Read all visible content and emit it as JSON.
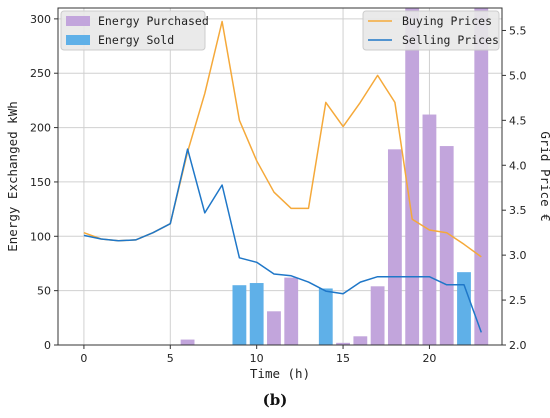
{
  "caption": "(b)",
  "chart_data": {
    "type": "bar",
    "xlabel": "Time (h)",
    "ylabel": "Energy Exchanged kWh",
    "y2label": "Grid Price €",
    "xlim": [
      -1.5,
      24.2
    ],
    "ylim": [
      0,
      310
    ],
    "y2lim": [
      2.0,
      5.75
    ],
    "xticks": [
      0,
      5,
      10,
      15,
      20
    ],
    "yticks": [
      0,
      50,
      100,
      150,
      200,
      250,
      300
    ],
    "y2ticks": [
      2.0,
      2.5,
      3.0,
      3.5,
      4.0,
      4.5,
      5.0,
      5.5
    ],
    "grid": true,
    "colors": {
      "purchased": "#c2a5dc",
      "sold": "#5fb0e8",
      "buying": "#f5a93a",
      "selling": "#1f77c8"
    },
    "bars": [
      {
        "name": "Energy Purchased",
        "x": [
          6,
          11,
          12,
          15,
          16,
          17,
          18,
          19,
          20,
          21,
          23
        ],
        "values": [
          5,
          31,
          62,
          2,
          8,
          54,
          180,
          310,
          212,
          183,
          310
        ]
      },
      {
        "name": "Energy Sold",
        "x": [
          9,
          10,
          14,
          22
        ],
        "values": [
          55,
          57,
          52,
          67
        ]
      }
    ],
    "lines": [
      {
        "name": "Buying Prices",
        "axis": "right",
        "x": [
          0,
          1,
          2,
          3,
          4,
          5,
          6,
          7,
          8,
          9,
          10,
          11,
          12,
          13,
          14,
          15,
          16,
          17,
          18,
          19,
          20,
          21,
          22,
          23
        ],
        "values": [
          3.25,
          3.18,
          3.16,
          3.17,
          3.25,
          3.35,
          4.15,
          4.8,
          5.6,
          4.5,
          4.05,
          3.7,
          3.52,
          3.52,
          4.7,
          4.43,
          4.7,
          5.0,
          4.7,
          3.4,
          3.28,
          3.25,
          3.12,
          2.98
        ]
      },
      {
        "name": "Selling Prices",
        "axis": "right",
        "x": [
          0,
          1,
          2,
          3,
          4,
          5,
          6,
          7,
          8,
          9,
          10,
          11,
          12,
          13,
          14,
          15,
          16,
          17,
          18,
          19,
          20,
          21,
          22,
          23
        ],
        "values": [
          3.22,
          3.18,
          3.16,
          3.17,
          3.25,
          3.35,
          4.18,
          3.47,
          3.78,
          2.97,
          2.92,
          2.79,
          2.77,
          2.7,
          2.6,
          2.57,
          2.7,
          2.76,
          2.76,
          2.76,
          2.76,
          2.67,
          2.67,
          2.14
        ]
      }
    ],
    "legend": [
      {
        "position": "top-left",
        "entries": [
          "Energy Purchased",
          "Energy Sold"
        ]
      },
      {
        "position": "top-right",
        "entries": [
          "Buying Prices",
          "Selling Prices"
        ]
      }
    ]
  }
}
